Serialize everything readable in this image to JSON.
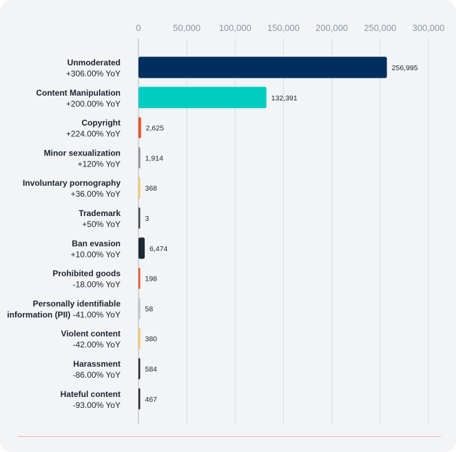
{
  "chart_data": {
    "type": "bar",
    "orientation": "horizontal",
    "title": "",
    "xlabel": "",
    "ylabel": "",
    "xlim": [
      0,
      300000
    ],
    "grid": true,
    "x_ticks": [
      {
        "value": 0,
        "label": "0"
      },
      {
        "value": 50000,
        "label": "50,000"
      },
      {
        "value": 100000,
        "label": "100,000"
      },
      {
        "value": 150000,
        "label": "150,000"
      },
      {
        "value": 200000,
        "label": "200,000"
      },
      {
        "value": 250000,
        "label": "250,000"
      },
      {
        "value": 300000,
        "label": "300,000"
      }
    ],
    "categories": [
      {
        "name": "Unmoderated",
        "yoy": "+306.00% YoY",
        "value": 256995,
        "value_label": "256,995",
        "color": "#002f5e"
      },
      {
        "name": "Content Manipulation",
        "yoy": "+200.00% YoY",
        "value": 132391,
        "value_label": "132,391",
        "color": "#00cdc0"
      },
      {
        "name": "Copyright",
        "yoy": "+224.00% YoY",
        "value": 2625,
        "value_label": "2,625",
        "color": "#ee4d24"
      },
      {
        "name": "Minor sexualization",
        "yoy": "+120% YoY",
        "value": 1914,
        "value_label": "1,914",
        "color": "#8793a0"
      },
      {
        "name": "Involuntary pornography",
        "yoy": "+36.00% YoY",
        "value": 368,
        "value_label": "368",
        "color": "#f5c468"
      },
      {
        "name": "Trademark",
        "yoy": "+50% YoY",
        "value": 3,
        "value_label": "3",
        "color": "#3b4651"
      },
      {
        "name": "Ban evasion",
        "yoy": "+10.00% YoY",
        "value": 6474,
        "value_label": "6,474",
        "color": "#1d2a33"
      },
      {
        "name": "Prohibited goods",
        "yoy": "-18.00% YoY",
        "value": 198,
        "value_label": "198",
        "color": "#ee4d24"
      },
      {
        "name": "Personally identifiable",
        "name_line2": "information (PII)",
        "yoy": "-41.00% YoY",
        "value": 58,
        "value_label": "58",
        "color": "#b8c1ca"
      },
      {
        "name": "Violent content",
        "yoy": "-42.00% YoY",
        "value": 380,
        "value_label": "380",
        "color": "#f5c468"
      },
      {
        "name": "Harassment",
        "yoy": "-86.00% YoY",
        "value": 584,
        "value_label": "584",
        "color": "#1d2a33"
      },
      {
        "name": "Hateful content",
        "yoy": "-93.00% YoY",
        "value": 467,
        "value_label": "467",
        "color": "#1d2a33"
      }
    ]
  },
  "colors": {
    "card_background": "#f2f4f6",
    "gridline": "#d9dee3",
    "axis_line": "#c5ccd3",
    "footer_line": "#f2b7a8"
  }
}
